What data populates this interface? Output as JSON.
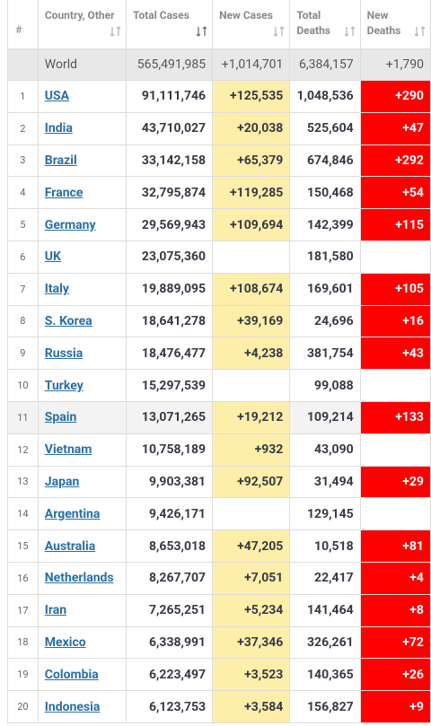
{
  "table": {
    "header": [
      "#",
      "Country, Other",
      "Total Cases",
      "New Cases",
      "Total Deaths",
      "New Deaths"
    ],
    "world": {
      "country": "World",
      "total_cases": "565,491,985",
      "new_cases": "+1,014,701",
      "total_deaths": "6,384,157",
      "new_deaths": "+1,790"
    },
    "rows": [
      {
        "rank": 1,
        "country": "USA",
        "total_cases": "91,111,746",
        "new_cases": "+125,535",
        "total_deaths": "1,048,536",
        "new_deaths": "+290"
      },
      {
        "rank": 2,
        "country": "India",
        "total_cases": "43,710,027",
        "new_cases": "+20,038",
        "total_deaths": "525,604",
        "new_deaths": "+47"
      },
      {
        "rank": 3,
        "country": "Brazil",
        "total_cases": "33,142,158",
        "new_cases": "+65,379",
        "total_deaths": "674,846",
        "new_deaths": "+292"
      },
      {
        "rank": 4,
        "country": "France",
        "total_cases": "32,795,874",
        "new_cases": "+119,285",
        "total_deaths": "150,468",
        "new_deaths": "+54"
      },
      {
        "rank": 5,
        "country": "Germany",
        "total_cases": "29,569,943",
        "new_cases": "+109,694",
        "total_deaths": "142,399",
        "new_deaths": "+115"
      },
      {
        "rank": 6,
        "country": "UK",
        "total_cases": "23,075,360",
        "total_deaths": "181,580"
      },
      {
        "rank": 7,
        "country": "Italy",
        "total_cases": "19,889,095",
        "new_cases": "+108,674",
        "total_deaths": "169,601",
        "new_deaths": "+105"
      },
      {
        "rank": 8,
        "country": "S. Korea",
        "total_cases": "18,641,278",
        "new_cases": "+39,169",
        "total_deaths": "24,696",
        "new_deaths": "+16"
      },
      {
        "rank": 9,
        "country": "Russia",
        "total_cases": "18,476,477",
        "new_cases": "+4,238",
        "total_deaths": "381,754",
        "new_deaths": "+43"
      },
      {
        "rank": 10,
        "country": "Turkey",
        "total_cases": "15,297,539",
        "total_deaths": "99,088"
      },
      {
        "rank": 11,
        "country": "Spain",
        "total_cases": "13,071,265",
        "new_cases": "+19,212",
        "total_deaths": "109,214",
        "new_deaths": "+133"
      },
      {
        "rank": 12,
        "country": "Vietnam",
        "total_cases": "10,758,189",
        "new_cases": "+932",
        "total_deaths": "43,090"
      },
      {
        "rank": 13,
        "country": "Japan",
        "total_cases": "9,903,381",
        "new_cases": "+92,507",
        "total_deaths": "31,494",
        "new_deaths": "+29"
      },
      {
        "rank": 14,
        "country": "Argentina",
        "total_cases": "9,426,171",
        "total_deaths": "129,145"
      },
      {
        "rank": 15,
        "country": "Australia",
        "total_cases": "8,653,018",
        "new_cases": "+47,205",
        "total_deaths": "10,518",
        "new_deaths": "+81"
      },
      {
        "rank": 16,
        "country": "Netherlands",
        "total_cases": "8,267,707",
        "new_cases": "+7,051",
        "total_deaths": "22,417",
        "new_deaths": "+4"
      },
      {
        "rank": 17,
        "country": "Iran",
        "total_cases": "7,265,251",
        "new_cases": "+5,234",
        "total_deaths": "141,464",
        "new_deaths": "+8"
      },
      {
        "rank": 18,
        "country": "Mexico",
        "total_cases": "6,338,991",
        "new_cases": "+37,346",
        "total_deaths": "326,261",
        "new_deaths": "+72"
      },
      {
        "rank": 19,
        "country": "Colombia",
        "total_cases": "6,223,497",
        "new_cases": "+3,523",
        "total_deaths": "140,365",
        "new_deaths": "+26"
      },
      {
        "rank": 20,
        "country": "Indonesia",
        "total_cases": "6,123,753",
        "new_cases": "+3,584",
        "total_deaths": "156,827",
        "new_deaths": "+9"
      }
    ]
  }
}
